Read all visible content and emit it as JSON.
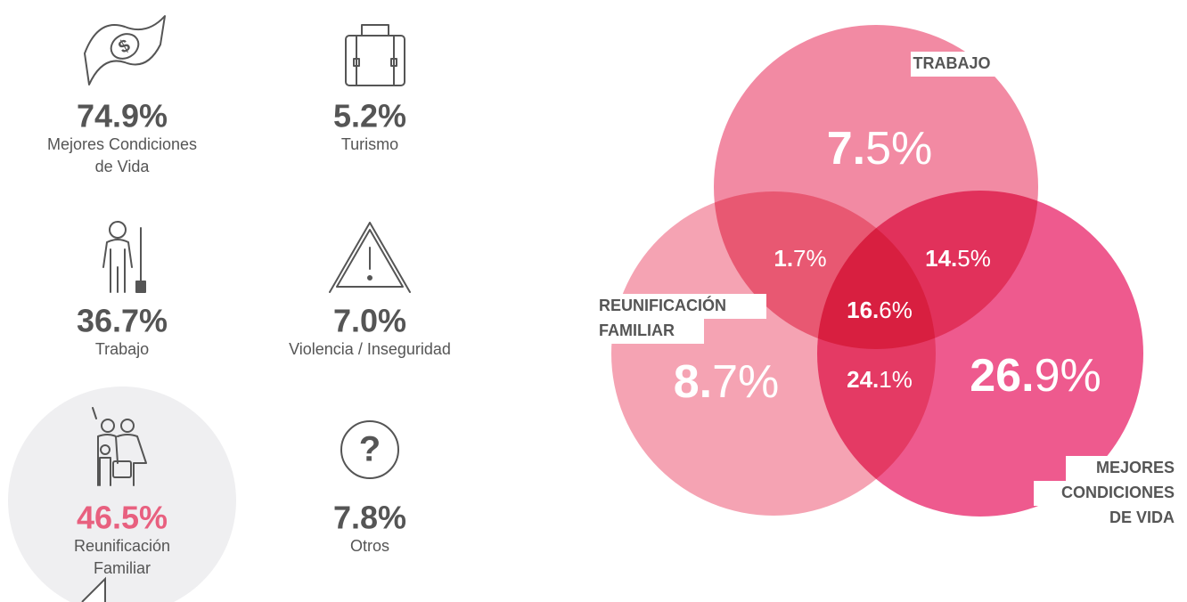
{
  "stats": [
    {
      "value": "74.9%",
      "label": [
        "Mejores Condiciones",
        "de Vida"
      ]
    },
    {
      "value": "5.2%",
      "label": [
        "Turismo"
      ]
    },
    {
      "value": "36.7%",
      "label": [
        "Trabajo"
      ]
    },
    {
      "value": "7.0%",
      "label": [
        "Violencia / Inseguridad"
      ]
    },
    {
      "value": "46.5%",
      "label": [
        "Reunificación",
        "Familiar"
      ]
    },
    {
      "value": "7.8%",
      "label": [
        "Otros"
      ]
    }
  ],
  "venn": {
    "sets": [
      {
        "label": [
          "TRABAJO"
        ]
      },
      {
        "label": [
          "REUNIFICACIÓN",
          "FAMILIAR"
        ]
      },
      {
        "label": [
          "MEJORES",
          "CONDICIONES",
          "DE VIDA"
        ]
      }
    ],
    "regions": [
      "7.5%",
      "1.7%",
      "14.5%",
      "16.6%",
      "8.7%",
      "24.1%",
      "26.9%"
    ]
  }
}
